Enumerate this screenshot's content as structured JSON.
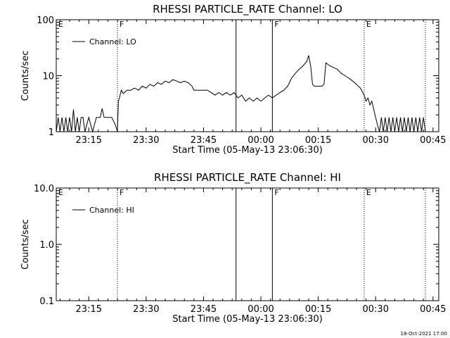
{
  "chart_data": [
    {
      "type": "line",
      "title": "RHESSI PARTICLE_RATE Channel: LO",
      "xlabel": "Start Time (05-May-13 23:06:30)",
      "ylabel": "Counts/sec",
      "yscale": "log",
      "ylim": [
        1,
        100
      ],
      "xlim": [
        "23:06:30",
        "00:46:30"
      ],
      "yticks": [
        "1",
        "10",
        "100"
      ],
      "xticks": [
        "23:15",
        "23:30",
        "23:45",
        "00:00",
        "00:15",
        "00:30",
        "00:45"
      ],
      "legend": {
        "label": "Channel: LO",
        "position": "top-left"
      },
      "grid": false,
      "markers": [
        {
          "label": "E",
          "time": "23:06:30",
          "style": "none"
        },
        {
          "label": "F",
          "time": "23:22:30",
          "style": "dotted"
        },
        {
          "label": "",
          "time": "23:53:30",
          "style": "solid"
        },
        {
          "label": "F",
          "time": "00:03:00",
          "style": "solid"
        },
        {
          "label": "E",
          "time": "00:27:00",
          "style": "dotted"
        },
        {
          "label": "",
          "time": "00:43:00",
          "style": "dotted"
        }
      ],
      "series": [
        {
          "name": "Channel: LO",
          "points": [
            [
              "23:06:30",
              1.0
            ],
            [
              "23:07:00",
              1.8
            ],
            [
              "23:07:30",
              1.0
            ],
            [
              "23:08:00",
              1.8
            ],
            [
              "23:08:30",
              1.0
            ],
            [
              "23:09:00",
              1.8
            ],
            [
              "23:09:30",
              1.0
            ],
            [
              "23:10:00",
              1.8
            ],
            [
              "23:10:30",
              1.0
            ],
            [
              "23:11:00",
              2.5
            ],
            [
              "23:11:30",
              1.0
            ],
            [
              "23:12:00",
              1.8
            ],
            [
              "23:12:30",
              1.0
            ],
            [
              "23:13:00",
              1.8
            ],
            [
              "23:13:30",
              1.8
            ],
            [
              "23:14:00",
              1.0
            ],
            [
              "23:15:00",
              1.8
            ],
            [
              "23:16:00",
              1.0
            ],
            [
              "23:17:00",
              1.8
            ],
            [
              "23:17:30",
              1.8
            ],
            [
              "23:18:00",
              1.8
            ],
            [
              "23:18:30",
              2.6
            ],
            [
              "23:19:00",
              1.8
            ],
            [
              "23:20:00",
              1.8
            ],
            [
              "23:21:00",
              1.8
            ],
            [
              "23:22:00",
              1.3
            ],
            [
              "23:22:30",
              1.0
            ],
            [
              "23:22:45",
              3.5
            ],
            [
              "23:23:00",
              4.0
            ],
            [
              "23:23:30",
              5.5
            ],
            [
              "23:24:00",
              4.8
            ],
            [
              "23:25:00",
              5.5
            ],
            [
              "23:26:00",
              5.5
            ],
            [
              "23:27:00",
              6.0
            ],
            [
              "23:28:00",
              5.5
            ],
            [
              "23:29:00",
              6.5
            ],
            [
              "23:30:00",
              6.0
            ],
            [
              "23:31:00",
              7.0
            ],
            [
              "23:32:00",
              6.5
            ],
            [
              "23:33:00",
              7.5
            ],
            [
              "23:34:00",
              7.0
            ],
            [
              "23:35:00",
              8.0
            ],
            [
              "23:36:00",
              7.5
            ],
            [
              "23:37:00",
              8.5
            ],
            [
              "23:38:00",
              8.0
            ],
            [
              "23:39:00",
              7.5
            ],
            [
              "23:40:00",
              8.0
            ],
            [
              "23:41:00",
              7.5
            ],
            [
              "23:42:00",
              6.5
            ],
            [
              "23:42:30",
              5.5
            ],
            [
              "23:46:00",
              5.5
            ],
            [
              "23:47:00",
              5.0
            ],
            [
              "23:48:00",
              4.5
            ],
            [
              "23:49:00",
              5.0
            ],
            [
              "23:50:00",
              4.5
            ],
            [
              "23:51:00",
              5.0
            ],
            [
              "23:52:00",
              4.5
            ],
            [
              "23:53:00",
              5.0
            ],
            [
              "23:54:00",
              4.0
            ],
            [
              "23:55:00",
              4.5
            ],
            [
              "23:56:00",
              3.5
            ],
            [
              "23:57:00",
              4.0
            ],
            [
              "23:58:00",
              3.5
            ],
            [
              "23:59:00",
              4.0
            ],
            [
              "00:00:00",
              3.5
            ],
            [
              "00:01:00",
              4.0
            ],
            [
              "00:02:00",
              4.5
            ],
            [
              "00:03:00",
              4.0
            ],
            [
              "00:04:00",
              4.5
            ],
            [
              "00:05:00",
              5.0
            ],
            [
              "00:06:00",
              5.5
            ],
            [
              "00:07:00",
              6.5
            ],
            [
              "00:08:00",
              9.0
            ],
            [
              "00:09:00",
              11.0
            ],
            [
              "00:10:00",
              13.0
            ],
            [
              "00:11:00",
              15.0
            ],
            [
              "00:12:00",
              18.0
            ],
            [
              "00:12:30",
              23.0
            ],
            [
              "00:13:00",
              15.0
            ],
            [
              "00:13:30",
              7.0
            ],
            [
              "00:14:00",
              6.5
            ],
            [
              "00:15:00",
              6.5
            ],
            [
              "00:16:00",
              6.5
            ],
            [
              "00:16:30",
              7.0
            ],
            [
              "00:17:00",
              17.0
            ],
            [
              "00:18:00",
              15.0
            ],
            [
              "00:19:00",
              14.0
            ],
            [
              "00:20:00",
              13.0
            ],
            [
              "00:21:00",
              11.0
            ],
            [
              "00:22:00",
              10.0
            ],
            [
              "00:23:00",
              9.0
            ],
            [
              "00:24:00",
              8.0
            ],
            [
              "00:25:00",
              7.0
            ],
            [
              "00:26:00",
              6.0
            ],
            [
              "00:27:00",
              4.5
            ],
            [
              "00:27:30",
              3.5
            ],
            [
              "00:28:00",
              4.0
            ],
            [
              "00:28:30",
              3.0
            ],
            [
              "00:29:00",
              3.5
            ],
            [
              "00:29:30",
              2.5
            ],
            [
              "00:30:00",
              1.8
            ],
            [
              "00:30:30",
              1.3
            ],
            [
              "00:31:00",
              1.0
            ],
            [
              "00:31:30",
              1.8
            ],
            [
              "00:32:00",
              1.0
            ],
            [
              "00:32:30",
              1.8
            ],
            [
              "00:33:00",
              1.0
            ],
            [
              "00:33:30",
              1.8
            ],
            [
              "00:34:00",
              1.0
            ],
            [
              "00:34:30",
              1.8
            ],
            [
              "00:35:00",
              1.0
            ],
            [
              "00:35:30",
              1.8
            ],
            [
              "00:36:00",
              1.0
            ],
            [
              "00:36:30",
              1.8
            ],
            [
              "00:37:00",
              1.0
            ],
            [
              "00:37:30",
              1.8
            ],
            [
              "00:38:00",
              1.0
            ],
            [
              "00:38:30",
              1.8
            ],
            [
              "00:39:00",
              1.0
            ],
            [
              "00:39:30",
              1.8
            ],
            [
              "00:40:00",
              1.0
            ],
            [
              "00:40:30",
              1.8
            ],
            [
              "00:41:00",
              1.0
            ],
            [
              "00:41:30",
              1.8
            ],
            [
              "00:42:00",
              1.0
            ],
            [
              "00:42:30",
              1.8
            ],
            [
              "00:43:00",
              1.0
            ]
          ]
        }
      ]
    },
    {
      "type": "line",
      "title": "RHESSI PARTICLE_RATE Channel: HI",
      "xlabel": "Start Time (05-May-13 23:06:30)",
      "ylabel": "Counts/sec",
      "yscale": "log",
      "ylim": [
        0.1,
        10
      ],
      "xlim": [
        "23:06:30",
        "00:46:30"
      ],
      "yticks": [
        "0.1",
        "1.0",
        "10.0"
      ],
      "xticks": [
        "23:15",
        "23:30",
        "23:45",
        "00:00",
        "00:15",
        "00:30",
        "00:45"
      ],
      "legend": {
        "label": "Channel: HI",
        "position": "top-left"
      },
      "grid": false,
      "markers": [
        {
          "label": "E",
          "time": "23:06:30",
          "style": "none"
        },
        {
          "label": "F",
          "time": "23:22:30",
          "style": "dotted"
        },
        {
          "label": "",
          "time": "23:53:30",
          "style": "solid"
        },
        {
          "label": "F",
          "time": "00:03:00",
          "style": "solid"
        },
        {
          "label": "E",
          "time": "00:27:00",
          "style": "dotted"
        },
        {
          "label": "",
          "time": "00:43:00",
          "style": "dotted"
        }
      ],
      "series": [
        {
          "name": "Channel: HI",
          "points": []
        }
      ]
    }
  ],
  "footer": {
    "timestamp": "18-Oct-2021 17:00"
  }
}
